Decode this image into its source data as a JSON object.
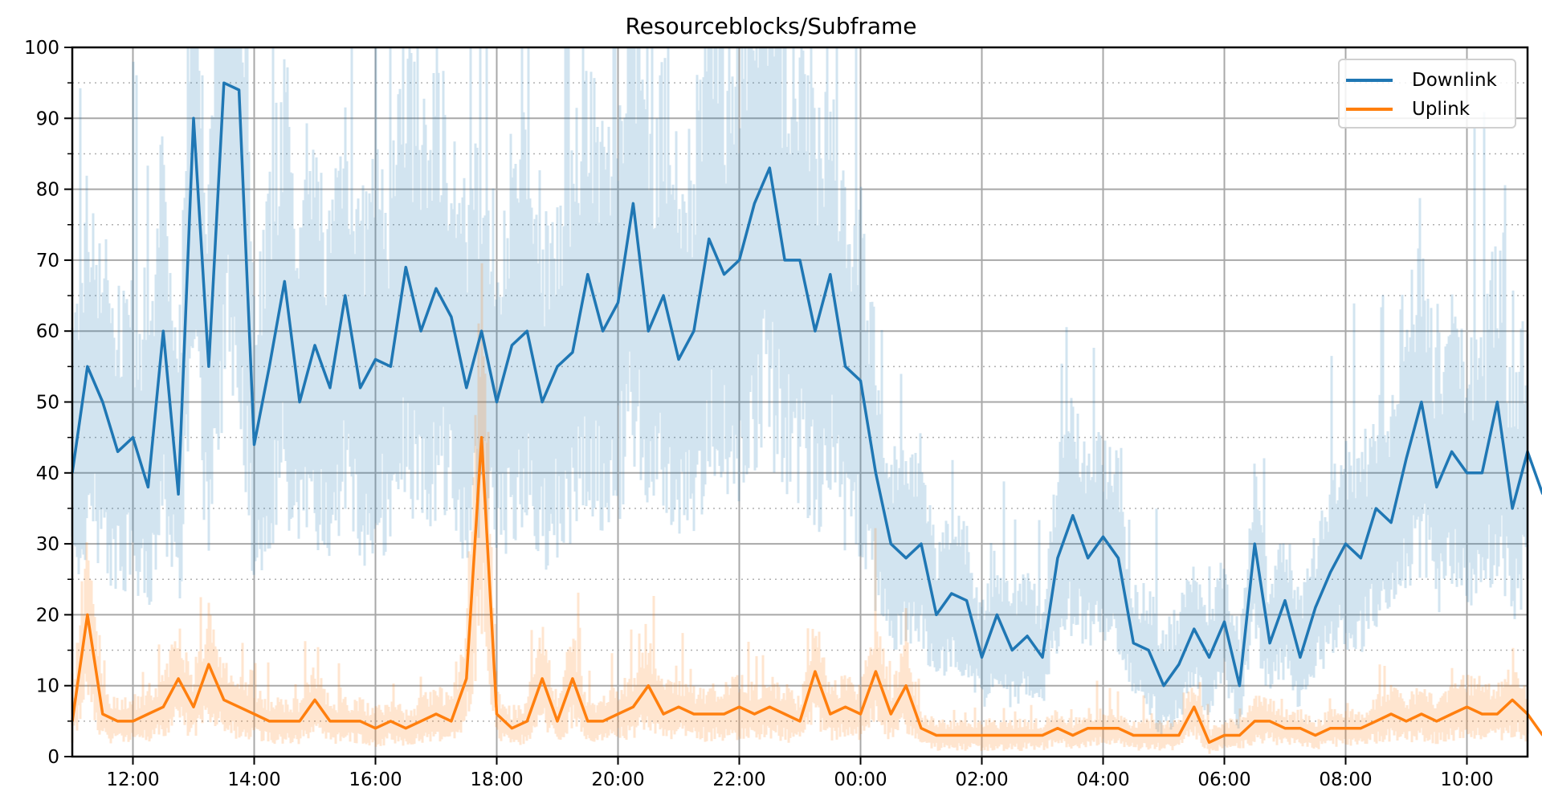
{
  "chart_data": {
    "type": "line",
    "title": "Resourceblocks/Subframe",
    "xlabel": "",
    "ylabel": "",
    "ylim": [
      0,
      100
    ],
    "yticks": [
      0,
      10,
      20,
      30,
      40,
      50,
      60,
      70,
      80,
      90,
      100
    ],
    "yminor_step": 5,
    "xlim": [
      "11:00",
      "11:00 (+1d)"
    ],
    "xtick_labels": [
      "12:00",
      "14:00",
      "16:00",
      "18:00",
      "20:00",
      "22:00",
      "00:00",
      "02:00",
      "04:00",
      "06:00",
      "08:00",
      "10:00"
    ],
    "grid": {
      "major": "solid",
      "minor": "dotted"
    },
    "legend_position": "upper right",
    "x_step_minutes": 15,
    "x_start": "11:00",
    "series": [
      {
        "name": "Downlink",
        "color": "#1f77b4",
        "raw_band_color": "#1f77b4",
        "raw_band_alpha": 0.2,
        "values": [
          40,
          55,
          50,
          43,
          45,
          38,
          60,
          37,
          90,
          55,
          95,
          94,
          44,
          55,
          67,
          50,
          58,
          52,
          65,
          52,
          56,
          55,
          69,
          60,
          66,
          62,
          52,
          60,
          50,
          58,
          60,
          50,
          55,
          57,
          68,
          60,
          64,
          78,
          60,
          65,
          56,
          60,
          73,
          68,
          70,
          78,
          83,
          70,
          70,
          60,
          68,
          55,
          53,
          40,
          30,
          28,
          30,
          20,
          23,
          22,
          14,
          20,
          15,
          17,
          14,
          28,
          34,
          28,
          31,
          28,
          16,
          15,
          10,
          13,
          18,
          14,
          19,
          10,
          30,
          16,
          22,
          14,
          21,
          26,
          30,
          28,
          35,
          33,
          42,
          50,
          38,
          43,
          40,
          40,
          50,
          35,
          43,
          37
        ]
      },
      {
        "name": "Uplink",
        "color": "#ff7f0e",
        "raw_band_color": "#ff7f0e",
        "raw_band_alpha": 0.2,
        "values": [
          5,
          20,
          6,
          5,
          5,
          6,
          7,
          11,
          7,
          13,
          8,
          7,
          6,
          5,
          5,
          5,
          8,
          5,
          5,
          5,
          4,
          5,
          4,
          5,
          6,
          5,
          11,
          45,
          6,
          4,
          5,
          11,
          5,
          11,
          5,
          5,
          6,
          7,
          10,
          6,
          7,
          6,
          6,
          6,
          7,
          6,
          7,
          6,
          5,
          12,
          6,
          7,
          6,
          12,
          6,
          10,
          4,
          3,
          3,
          3,
          3,
          3,
          3,
          3,
          3,
          4,
          3,
          4,
          4,
          4,
          3,
          3,
          3,
          3,
          7,
          2,
          3,
          3,
          5,
          5,
          4,
          4,
          3,
          4,
          4,
          4,
          5,
          6,
          5,
          6,
          5,
          6,
          7,
          6,
          6,
          8,
          6,
          3
        ]
      }
    ]
  },
  "legend": {
    "items": [
      {
        "label": "Downlink",
        "color": "#1f77b4"
      },
      {
        "label": "Uplink",
        "color": "#ff7f0e"
      }
    ]
  }
}
